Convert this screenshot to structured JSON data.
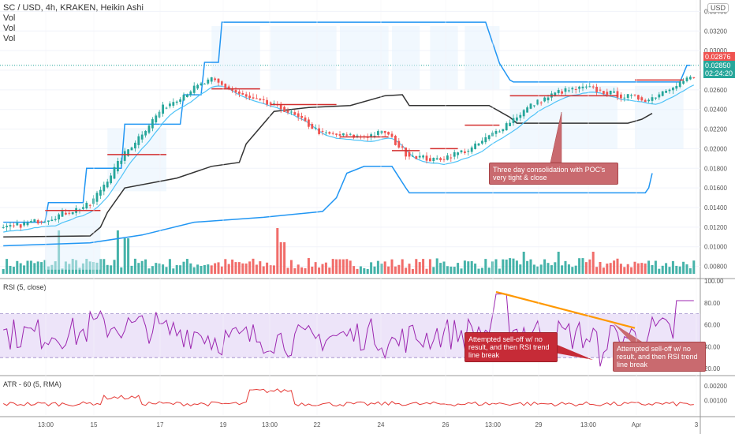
{
  "header": {
    "symbol_line": "SC / USD, 4h, KRAKEN, Heikin Ashi",
    "vol_lines": [
      "Vol",
      "Vol",
      "Vol"
    ]
  },
  "currency_badge": "USD",
  "price_labels": {
    "last": "0.02876",
    "current": "0.02850",
    "countdown": "02:24:20"
  },
  "annotations": {
    "main": "Three day consolidation with POC's very tight & close",
    "rsi_left": "Attempted sell-off w/  no  result, and then RSI trend line break",
    "rsi_right": "Attempted sell-off w/  no  result, and then RSI trend line break"
  },
  "colors": {
    "up": "#26a69a",
    "down": "#ef5350",
    "upper_band": "#2196f3",
    "lower_band": "#2196f3",
    "black_line": "#333333",
    "teal_ma": "#4fc3f7",
    "poc": "#d32f2f",
    "rsi_line": "#9c27b0",
    "rsi_band": "#e6d8f7",
    "atr_line": "#e53935",
    "trendline": "#ff9800",
    "annotation_bg": "#c96a6f"
  },
  "chart_data": [
    {
      "type": "candlestick",
      "title": "SC / USD, 4h, KRAKEN, Heikin Ashi",
      "y_axis_ticks": [
        "0.03400",
        "0.03200",
        "0.03000",
        "0.02800",
        "0.02600",
        "0.02400",
        "0.02200",
        "0.02000",
        "0.01800",
        "0.01600",
        "0.01400",
        "0.01200",
        "0.01000",
        "0.00800"
      ],
      "x_axis_ticks": [
        "13:00",
        "15",
        "17",
        "19",
        "13:00",
        "22",
        "24",
        "26",
        "13:00",
        "29",
        "13:00",
        "Apr",
        "3"
      ],
      "ylim": [
        0.007,
        0.035
      ],
      "last_price": 0.02876,
      "current_price": 0.0285,
      "close_path": [
        [
          0,
          0.0118
        ],
        [
          14,
          0.013
        ],
        [
          25,
          0.0143
        ],
        [
          35,
          0.0195
        ],
        [
          46,
          0.0242
        ],
        [
          54,
          0.026
        ],
        [
          60,
          0.027
        ],
        [
          70,
          0.0252
        ],
        [
          81,
          0.024
        ],
        [
          92,
          0.0215
        ],
        [
          103,
          0.0212
        ],
        [
          110,
          0.0217
        ],
        [
          116,
          0.0195
        ],
        [
          124,
          0.0188
        ],
        [
          135,
          0.02
        ],
        [
          143,
          0.022
        ],
        [
          152,
          0.0244
        ],
        [
          160,
          0.0258
        ],
        [
          168,
          0.0262
        ],
        [
          178,
          0.0254
        ],
        [
          186,
          0.025
        ],
        [
          193,
          0.0265
        ],
        [
          198,
          0.0272
        ]
      ],
      "upper_channel": [
        [
          0,
          0.0125
        ],
        [
          12,
          0.0125
        ],
        [
          13,
          0.0145
        ],
        [
          23,
          0.0145
        ],
        [
          24,
          0.018
        ],
        [
          34,
          0.018
        ],
        [
          35,
          0.0225
        ],
        [
          51,
          0.0225
        ],
        [
          52,
          0.0255
        ],
        [
          57,
          0.0255
        ],
        [
          58,
          0.0288
        ],
        [
          62,
          0.0288
        ],
        [
          63,
          0.0329
        ],
        [
          139,
          0.0329
        ],
        [
          143,
          0.0287
        ],
        [
          146,
          0.027
        ],
        [
          147,
          0.0268
        ],
        [
          195,
          0.0268
        ],
        [
          197,
          0.0285
        ],
        [
          198,
          0.0285
        ]
      ],
      "lower_channel": [
        [
          0,
          0.0101
        ],
        [
          25,
          0.0104
        ],
        [
          40,
          0.0112
        ],
        [
          55,
          0.0125
        ],
        [
          75,
          0.013
        ],
        [
          92,
          0.0136
        ],
        [
          96,
          0.015
        ],
        [
          99,
          0.0175
        ],
        [
          104,
          0.0182
        ],
        [
          112,
          0.0182
        ],
        [
          116,
          0.016
        ],
        [
          117,
          0.0155
        ],
        [
          185,
          0.0155
        ],
        [
          186,
          0.016
        ],
        [
          187,
          0.0175
        ]
      ],
      "black_line": [
        [
          0,
          0.011
        ],
        [
          25,
          0.0111
        ],
        [
          28,
          0.012
        ],
        [
          30,
          0.0135
        ],
        [
          35,
          0.016
        ],
        [
          50,
          0.017
        ],
        [
          60,
          0.0182
        ],
        [
          68,
          0.0186
        ],
        [
          70,
          0.0205
        ],
        [
          78,
          0.0238
        ],
        [
          88,
          0.0242
        ],
        [
          100,
          0.0244
        ],
        [
          110,
          0.0254
        ],
        [
          115,
          0.0255
        ],
        [
          117,
          0.0244
        ],
        [
          140,
          0.0244
        ],
        [
          146,
          0.0232
        ],
        [
          148,
          0.0226
        ],
        [
          180,
          0.0226
        ],
        [
          184,
          0.023
        ],
        [
          187,
          0.0236
        ]
      ],
      "poc_levels": [
        [
          12,
          28,
          0.0137
        ],
        [
          30,
          47,
          0.0194
        ],
        [
          60,
          74,
          0.0261
        ],
        [
          77,
          96,
          0.0245
        ],
        [
          97,
          111,
          0.0212
        ],
        [
          112,
          120,
          0.0198
        ],
        [
          123,
          131,
          0.02
        ],
        [
          133,
          143,
          0.0224
        ],
        [
          146,
          177,
          0.0254
        ],
        [
          182,
          196,
          0.027
        ]
      ],
      "volume_bars": 200
    },
    {
      "type": "line",
      "title": "RSI (5, close)",
      "y_axis_ticks": [
        "100.00",
        "80.00",
        "60.00",
        "40.00",
        "20.00"
      ],
      "ylim": [
        15,
        100
      ],
      "band": [
        30,
        70
      ],
      "trendline": [
        [
          0.0,
          90
        ],
        [
          1.0,
          57
        ]
      ]
    },
    {
      "type": "line",
      "title": "ATR - 60 (5, RMA)",
      "y_axis_ticks": [
        "0.00200",
        "0.00100"
      ]
    }
  ]
}
